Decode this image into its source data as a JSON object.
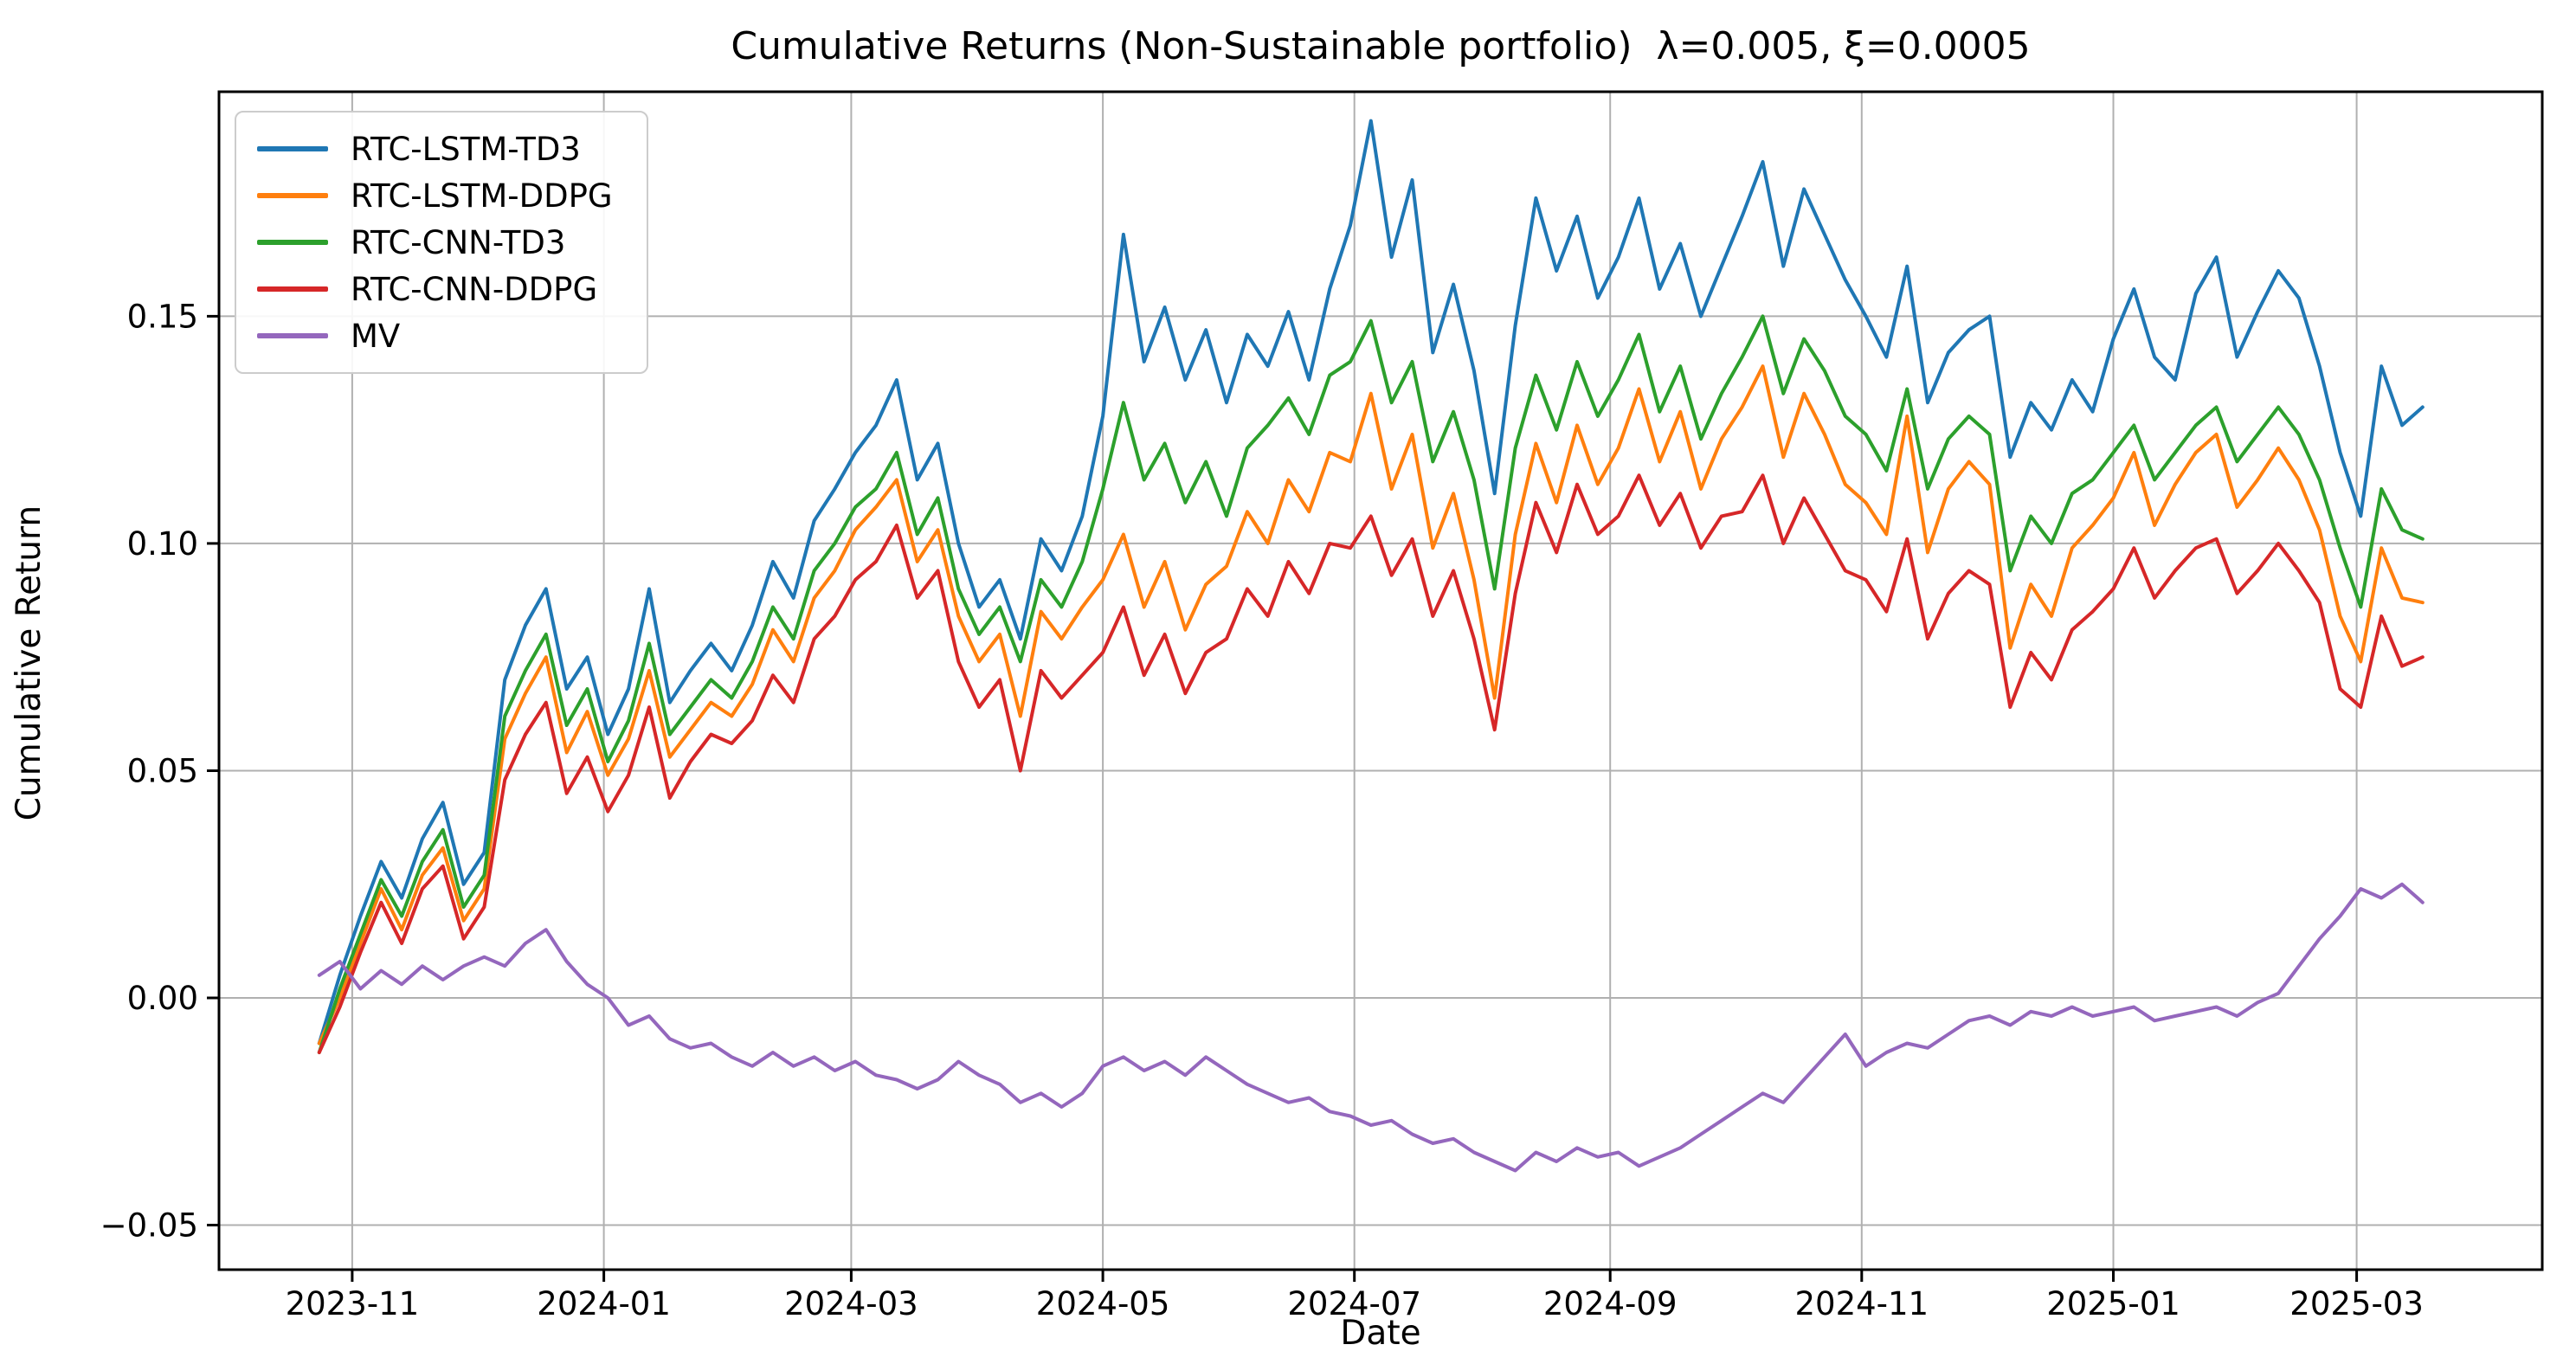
{
  "chart_data": {
    "type": "line",
    "title": "Cumulative Returns (Non-Sustainable portfolio)  λ=0.005, ξ=0.0005",
    "xlabel": "Date",
    "ylabel": "Cumulative Return",
    "grid": true,
    "legend_position": "upper left",
    "x_unit": "days since 2023-10-24 (t), step 5 days per point",
    "t_start": 0,
    "t_step": 5,
    "xlim": [
      -24.3,
      539
    ],
    "ylim": [
      -0.0598,
      0.1994
    ],
    "xticks": [
      {
        "t": 8,
        "label": "2023-11"
      },
      {
        "t": 69,
        "label": "2024-01"
      },
      {
        "t": 129,
        "label": "2024-03"
      },
      {
        "t": 190,
        "label": "2024-05"
      },
      {
        "t": 251,
        "label": "2024-07"
      },
      {
        "t": 313,
        "label": "2024-09"
      },
      {
        "t": 374,
        "label": "2024-11"
      },
      {
        "t": 435,
        "label": "2025-01"
      },
      {
        "t": 494,
        "label": "2025-03"
      }
    ],
    "yticks": [
      {
        "v": -0.05,
        "label": "−0.05"
      },
      {
        "v": 0.0,
        "label": "0.00"
      },
      {
        "v": 0.05,
        "label": "0.05"
      },
      {
        "v": 0.1,
        "label": "0.10"
      },
      {
        "v": 0.15,
        "label": "0.15"
      }
    ],
    "series": [
      {
        "name": "RTC-LSTM-TD3",
        "color": "#1f77b4",
        "values": [
          -0.01,
          0.005,
          0.018,
          0.03,
          0.022,
          0.035,
          0.043,
          0.025,
          0.032,
          0.07,
          0.082,
          0.09,
          0.068,
          0.075,
          0.058,
          0.068,
          0.09,
          0.065,
          0.072,
          0.078,
          0.072,
          0.082,
          0.096,
          0.088,
          0.105,
          0.112,
          0.12,
          0.126,
          0.136,
          0.114,
          0.122,
          0.1,
          0.086,
          0.092,
          0.079,
          0.101,
          0.094,
          0.106,
          0.128,
          0.168,
          0.14,
          0.152,
          0.136,
          0.147,
          0.131,
          0.146,
          0.139,
          0.151,
          0.136,
          0.156,
          0.17,
          0.193,
          0.163,
          0.18,
          0.142,
          0.157,
          0.138,
          0.111,
          0.148,
          0.176,
          0.16,
          0.172,
          0.154,
          0.163,
          0.176,
          0.156,
          0.166,
          0.15,
          0.161,
          0.172,
          0.184,
          0.161,
          0.178,
          0.168,
          0.158,
          0.15,
          0.141,
          0.161,
          0.131,
          0.142,
          0.147,
          0.15,
          0.119,
          0.131,
          0.125,
          0.136,
          0.129,
          0.145,
          0.156,
          0.141,
          0.136,
          0.155,
          0.163,
          0.141,
          0.151,
          0.16,
          0.154,
          0.139,
          0.12,
          0.106,
          0.139,
          0.126,
          0.13
        ]
      },
      {
        "name": "RTC-LSTM-DDPG",
        "color": "#ff7f0e",
        "values": [
          -0.01,
          0.0,
          0.012,
          0.024,
          0.015,
          0.027,
          0.033,
          0.017,
          0.024,
          0.057,
          0.067,
          0.075,
          0.054,
          0.063,
          0.049,
          0.057,
          0.072,
          0.053,
          0.059,
          0.065,
          0.062,
          0.069,
          0.081,
          0.074,
          0.088,
          0.094,
          0.103,
          0.108,
          0.114,
          0.096,
          0.103,
          0.084,
          0.074,
          0.08,
          0.062,
          0.085,
          0.079,
          0.086,
          0.092,
          0.102,
          0.086,
          0.096,
          0.081,
          0.091,
          0.095,
          0.107,
          0.1,
          0.114,
          0.107,
          0.12,
          0.118,
          0.133,
          0.112,
          0.124,
          0.099,
          0.111,
          0.092,
          0.066,
          0.102,
          0.122,
          0.109,
          0.126,
          0.113,
          0.121,
          0.134,
          0.118,
          0.129,
          0.112,
          0.123,
          0.13,
          0.139,
          0.119,
          0.133,
          0.124,
          0.113,
          0.109,
          0.102,
          0.128,
          0.098,
          0.112,
          0.118,
          0.113,
          0.077,
          0.091,
          0.084,
          0.099,
          0.104,
          0.11,
          0.12,
          0.104,
          0.113,
          0.12,
          0.124,
          0.108,
          0.114,
          0.121,
          0.114,
          0.103,
          0.084,
          0.074,
          0.099,
          0.088,
          0.087
        ]
      },
      {
        "name": "RTC-CNN-TD3",
        "color": "#2ca02c",
        "values": [
          -0.012,
          0.002,
          0.014,
          0.026,
          0.018,
          0.03,
          0.037,
          0.02,
          0.027,
          0.062,
          0.072,
          0.08,
          0.06,
          0.068,
          0.052,
          0.061,
          0.078,
          0.058,
          0.064,
          0.07,
          0.066,
          0.074,
          0.086,
          0.079,
          0.094,
          0.1,
          0.108,
          0.112,
          0.12,
          0.102,
          0.11,
          0.09,
          0.08,
          0.086,
          0.074,
          0.092,
          0.086,
          0.096,
          0.112,
          0.131,
          0.114,
          0.122,
          0.109,
          0.118,
          0.106,
          0.121,
          0.126,
          0.132,
          0.124,
          0.137,
          0.14,
          0.149,
          0.131,
          0.14,
          0.118,
          0.129,
          0.114,
          0.09,
          0.121,
          0.137,
          0.125,
          0.14,
          0.128,
          0.136,
          0.146,
          0.129,
          0.139,
          0.123,
          0.133,
          0.141,
          0.15,
          0.133,
          0.145,
          0.138,
          0.128,
          0.124,
          0.116,
          0.134,
          0.112,
          0.123,
          0.128,
          0.124,
          0.094,
          0.106,
          0.1,
          0.111,
          0.114,
          0.12,
          0.126,
          0.114,
          0.12,
          0.126,
          0.13,
          0.118,
          0.124,
          0.13,
          0.124,
          0.114,
          0.099,
          0.086,
          0.112,
          0.103,
          0.101
        ]
      },
      {
        "name": "RTC-CNN-DDPG",
        "color": "#d62728",
        "values": [
          -0.012,
          -0.002,
          0.01,
          0.021,
          0.012,
          0.024,
          0.029,
          0.013,
          0.02,
          0.048,
          0.058,
          0.065,
          0.045,
          0.053,
          0.041,
          0.049,
          0.064,
          0.044,
          0.052,
          0.058,
          0.056,
          0.061,
          0.071,
          0.065,
          0.079,
          0.084,
          0.092,
          0.096,
          0.104,
          0.088,
          0.094,
          0.074,
          0.064,
          0.07,
          0.05,
          0.072,
          0.066,
          0.071,
          0.076,
          0.086,
          0.071,
          0.08,
          0.067,
          0.076,
          0.079,
          0.09,
          0.084,
          0.096,
          0.089,
          0.1,
          0.099,
          0.106,
          0.093,
          0.101,
          0.084,
          0.094,
          0.079,
          0.059,
          0.089,
          0.109,
          0.098,
          0.113,
          0.102,
          0.106,
          0.115,
          0.104,
          0.111,
          0.099,
          0.106,
          0.107,
          0.115,
          0.1,
          0.11,
          0.102,
          0.094,
          0.092,
          0.085,
          0.101,
          0.079,
          0.089,
          0.094,
          0.091,
          0.064,
          0.076,
          0.07,
          0.081,
          0.085,
          0.09,
          0.099,
          0.088,
          0.094,
          0.099,
          0.101,
          0.089,
          0.094,
          0.1,
          0.094,
          0.087,
          0.068,
          0.064,
          0.084,
          0.073,
          0.075
        ]
      },
      {
        "name": "MV",
        "color": "#9467bd",
        "values": [
          0.005,
          0.008,
          0.002,
          0.006,
          0.003,
          0.007,
          0.004,
          0.007,
          0.009,
          0.007,
          0.012,
          0.015,
          0.008,
          0.003,
          0.0,
          -0.006,
          -0.004,
          -0.009,
          -0.011,
          -0.01,
          -0.013,
          -0.015,
          -0.012,
          -0.015,
          -0.013,
          -0.016,
          -0.014,
          -0.017,
          -0.018,
          -0.02,
          -0.018,
          -0.014,
          -0.017,
          -0.019,
          -0.023,
          -0.021,
          -0.024,
          -0.021,
          -0.015,
          -0.013,
          -0.016,
          -0.014,
          -0.017,
          -0.013,
          -0.016,
          -0.019,
          -0.021,
          -0.023,
          -0.022,
          -0.025,
          -0.026,
          -0.028,
          -0.027,
          -0.03,
          -0.032,
          -0.031,
          -0.034,
          -0.036,
          -0.038,
          -0.034,
          -0.036,
          -0.033,
          -0.035,
          -0.034,
          -0.037,
          -0.035,
          -0.033,
          -0.03,
          -0.027,
          -0.024,
          -0.021,
          -0.023,
          -0.018,
          -0.013,
          -0.008,
          -0.015,
          -0.012,
          -0.01,
          -0.011,
          -0.008,
          -0.005,
          -0.004,
          -0.006,
          -0.003,
          -0.004,
          -0.002,
          -0.004,
          -0.003,
          -0.002,
          -0.005,
          -0.004,
          -0.003,
          -0.002,
          -0.004,
          -0.001,
          0.001,
          0.007,
          0.013,
          0.018,
          0.024,
          0.022,
          0.025,
          0.021
        ]
      }
    ]
  },
  "colors": {
    "background": "#ffffff",
    "grid": "#b0b0b0",
    "spine": "#000000",
    "tick_text": "#000000",
    "legend_border": "#cccccc"
  }
}
